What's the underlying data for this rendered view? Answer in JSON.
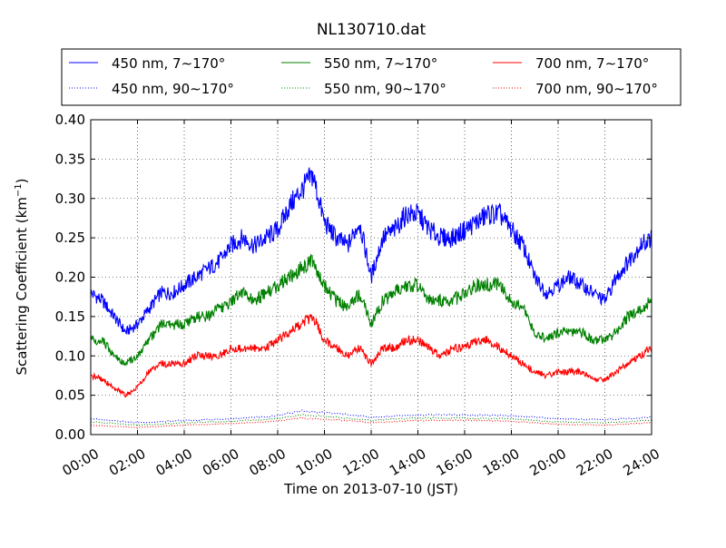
{
  "chart_data": {
    "type": "line",
    "title": "NL130710.dat",
    "xlabel": "Time on 2013-07-10 (JST)",
    "ylabel_main": "Scattering Coefficient (km",
    "ylabel_sup": "−1",
    "ylabel_close": ")",
    "xlim": [
      "00:00",
      "24:00"
    ],
    "ylim": [
      0.0,
      0.4
    ],
    "xticks": [
      "00:00",
      "02:00",
      "04:00",
      "06:00",
      "08:00",
      "10:00",
      "12:00",
      "14:00",
      "16:00",
      "18:00",
      "20:00",
      "22:00",
      "24:00"
    ],
    "yticks": [
      "0.00",
      "0.05",
      "0.10",
      "0.15",
      "0.20",
      "0.25",
      "0.30",
      "0.35",
      "0.40"
    ],
    "grid": true,
    "legend_position": "top",
    "series": [
      {
        "name": "450 nm, 7∼170°",
        "color": "#0000ff",
        "style": "solid",
        "x": [
          "00:00",
          "00:30",
          "01:00",
          "01:30",
          "02:00",
          "02:30",
          "03:00",
          "03:30",
          "04:00",
          "04:30",
          "05:00",
          "05:30",
          "06:00",
          "06:30",
          "07:00",
          "07:30",
          "08:00",
          "08:30",
          "09:00",
          "09:30",
          "10:00",
          "10:30",
          "11:00",
          "11:30",
          "12:00",
          "12:30",
          "13:00",
          "13:30",
          "14:00",
          "14:30",
          "15:00",
          "15:30",
          "16:00",
          "16:30",
          "17:00",
          "17:30",
          "18:00",
          "18:30",
          "19:00",
          "19:30",
          "20:00",
          "20:30",
          "21:00",
          "21:30",
          "22:00",
          "22:30",
          "23:00",
          "23:30",
          "24:00"
        ],
        "values": [
          0.18,
          0.17,
          0.15,
          0.13,
          0.14,
          0.16,
          0.18,
          0.18,
          0.19,
          0.2,
          0.21,
          0.22,
          0.24,
          0.25,
          0.24,
          0.25,
          0.26,
          0.29,
          0.31,
          0.33,
          0.27,
          0.25,
          0.24,
          0.27,
          0.2,
          0.25,
          0.26,
          0.28,
          0.28,
          0.26,
          0.25,
          0.25,
          0.26,
          0.27,
          0.28,
          0.28,
          0.26,
          0.24,
          0.2,
          0.18,
          0.19,
          0.2,
          0.19,
          0.18,
          0.17,
          0.2,
          0.22,
          0.24,
          0.25
        ]
      },
      {
        "name": "550 nm, 7∼170°",
        "color": "#008000",
        "style": "solid",
        "x": [
          "00:00",
          "00:30",
          "01:00",
          "01:30",
          "02:00",
          "02:30",
          "03:00",
          "03:30",
          "04:00",
          "04:30",
          "05:00",
          "05:30",
          "06:00",
          "06:30",
          "07:00",
          "07:30",
          "08:00",
          "08:30",
          "09:00",
          "09:30",
          "10:00",
          "10:30",
          "11:00",
          "11:30",
          "12:00",
          "12:30",
          "13:00",
          "13:30",
          "14:00",
          "14:30",
          "15:00",
          "15:30",
          "16:00",
          "16:30",
          "17:00",
          "17:30",
          "18:00",
          "18:30",
          "19:00",
          "19:30",
          "20:00",
          "20:30",
          "21:00",
          "21:30",
          "22:00",
          "22:30",
          "23:00",
          "23:30",
          "24:00"
        ],
        "values": [
          0.12,
          0.12,
          0.1,
          0.09,
          0.1,
          0.12,
          0.14,
          0.14,
          0.14,
          0.15,
          0.15,
          0.16,
          0.17,
          0.18,
          0.17,
          0.18,
          0.19,
          0.2,
          0.21,
          0.22,
          0.19,
          0.17,
          0.16,
          0.18,
          0.14,
          0.17,
          0.18,
          0.19,
          0.19,
          0.17,
          0.17,
          0.17,
          0.18,
          0.19,
          0.19,
          0.19,
          0.17,
          0.16,
          0.13,
          0.12,
          0.13,
          0.13,
          0.13,
          0.12,
          0.12,
          0.13,
          0.15,
          0.16,
          0.17
        ]
      },
      {
        "name": "700 nm, 7∼170°",
        "color": "#ff0000",
        "style": "solid",
        "x": [
          "00:00",
          "00:30",
          "01:00",
          "01:30",
          "02:00",
          "02:30",
          "03:00",
          "03:30",
          "04:00",
          "04:30",
          "05:00",
          "05:30",
          "06:00",
          "06:30",
          "07:00",
          "07:30",
          "08:00",
          "08:30",
          "09:00",
          "09:30",
          "10:00",
          "10:30",
          "11:00",
          "11:30",
          "12:00",
          "12:30",
          "13:00",
          "13:30",
          "14:00",
          "14:30",
          "15:00",
          "15:30",
          "16:00",
          "16:30",
          "17:00",
          "17:30",
          "18:00",
          "18:30",
          "19:00",
          "19:30",
          "20:00",
          "20:30",
          "21:00",
          "21:30",
          "22:00",
          "22:30",
          "23:00",
          "23:30",
          "24:00"
        ],
        "values": [
          0.075,
          0.07,
          0.06,
          0.05,
          0.06,
          0.08,
          0.09,
          0.09,
          0.09,
          0.1,
          0.1,
          0.1,
          0.11,
          0.11,
          0.11,
          0.11,
          0.12,
          0.13,
          0.14,
          0.15,
          0.12,
          0.11,
          0.1,
          0.11,
          0.09,
          0.11,
          0.11,
          0.12,
          0.12,
          0.11,
          0.1,
          0.11,
          0.11,
          0.12,
          0.12,
          0.11,
          0.1,
          0.09,
          0.08,
          0.075,
          0.08,
          0.08,
          0.08,
          0.07,
          0.07,
          0.08,
          0.09,
          0.1,
          0.11
        ]
      },
      {
        "name": "450 nm, 90∼170°",
        "color": "#0000ff",
        "style": "dotted",
        "x": [
          "00:00",
          "02:00",
          "04:00",
          "06:00",
          "08:00",
          "09:00",
          "10:00",
          "11:00",
          "12:00",
          "14:00",
          "16:00",
          "18:00",
          "20:00",
          "22:00",
          "24:00"
        ],
        "values": [
          0.02,
          0.015,
          0.018,
          0.02,
          0.024,
          0.03,
          0.028,
          0.026,
          0.022,
          0.025,
          0.025,
          0.024,
          0.02,
          0.019,
          0.022
        ]
      },
      {
        "name": "550 nm, 90∼170°",
        "color": "#008000",
        "style": "dotted",
        "x": [
          "00:00",
          "02:00",
          "04:00",
          "06:00",
          "08:00",
          "09:00",
          "10:00",
          "11:00",
          "12:00",
          "14:00",
          "16:00",
          "18:00",
          "20:00",
          "22:00",
          "24:00"
        ],
        "values": [
          0.016,
          0.012,
          0.015,
          0.017,
          0.02,
          0.025,
          0.023,
          0.021,
          0.018,
          0.021,
          0.021,
          0.02,
          0.016,
          0.015,
          0.018
        ]
      },
      {
        "name": "700 nm, 90∼170°",
        "color": "#ff0000",
        "style": "dotted",
        "x": [
          "00:00",
          "02:00",
          "04:00",
          "06:00",
          "08:00",
          "09:00",
          "10:00",
          "11:00",
          "12:00",
          "14:00",
          "16:00",
          "18:00",
          "20:00",
          "22:00",
          "24:00"
        ],
        "values": [
          0.012,
          0.009,
          0.012,
          0.014,
          0.017,
          0.021,
          0.019,
          0.018,
          0.015,
          0.018,
          0.018,
          0.017,
          0.013,
          0.012,
          0.015
        ]
      }
    ]
  }
}
